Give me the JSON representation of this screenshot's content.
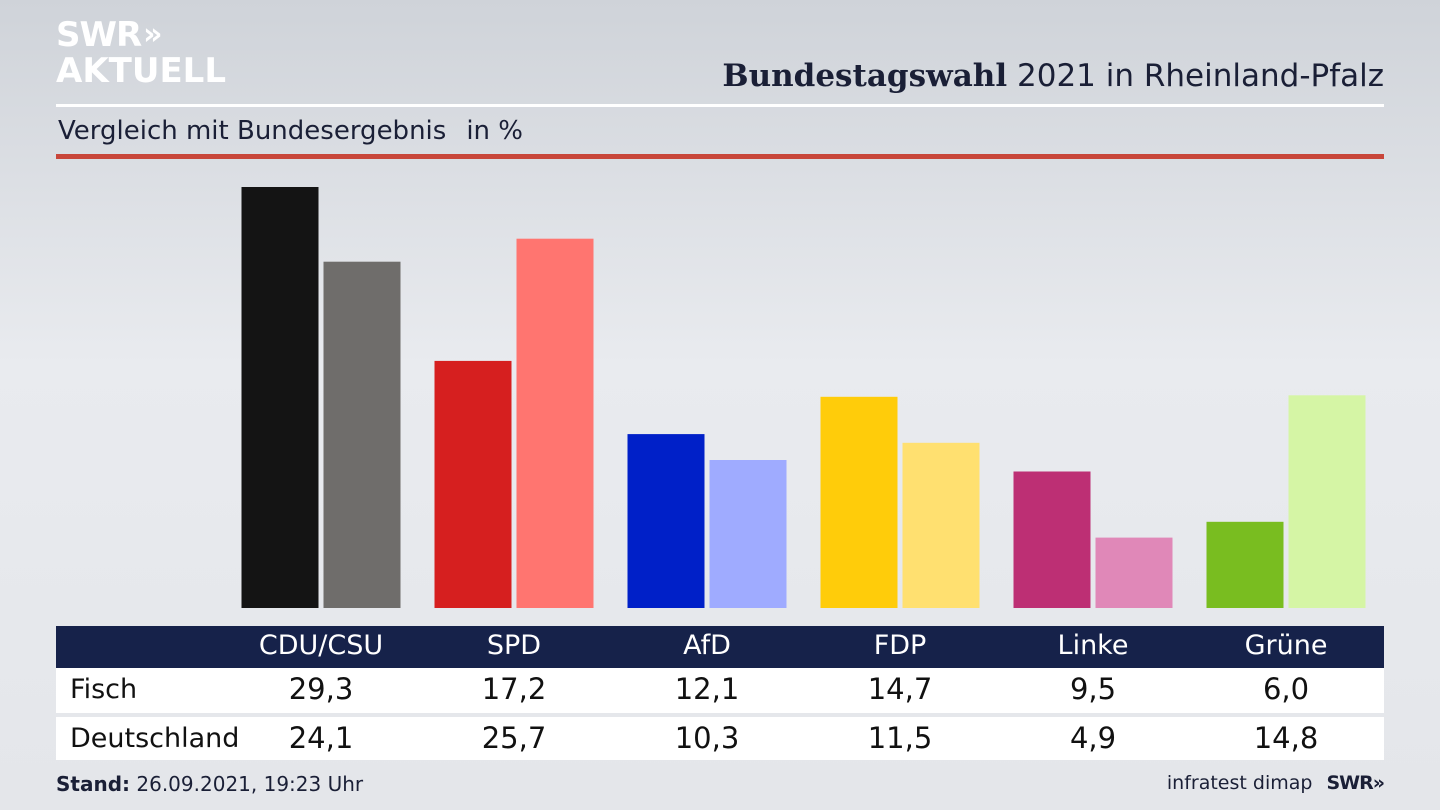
{
  "logo": {
    "line1": "SWR",
    "chevrons": "»",
    "line2": "AKTUELL"
  },
  "header": {
    "title_bold": "Bundestagswahl",
    "title_rest": "2021 in Rheinland-Pfalz"
  },
  "subtitle": {
    "text": "Vergleich mit Bundesergebnis",
    "unit": "in %"
  },
  "colors": {
    "primary": [
      "#141414",
      "#d61f1f",
      "#0020c8",
      "#ffcc0a",
      "#bd2f74",
      "#79bd20"
    ],
    "secondary": [
      "#6f6d6b",
      "#ff7570",
      "#9fabff",
      "#ffe070",
      "#e088b8",
      "#d5f5a5"
    ],
    "table_header": "#16224a",
    "accent_rule": "#c8463a"
  },
  "chart_data": {
    "type": "bar",
    "categories": [
      "CDU/CSU",
      "SPD",
      "AfD",
      "FDP",
      "Linke",
      "Grüne"
    ],
    "series": [
      {
        "name": "Fisch",
        "values": [
          29.3,
          17.2,
          12.1,
          14.7,
          9.5,
          6.0
        ]
      },
      {
        "name": "Deutschland",
        "values": [
          24.1,
          25.7,
          10.3,
          11.5,
          4.9,
          14.8
        ]
      }
    ],
    "ylim": [
      0,
      29.3
    ],
    "grid": false,
    "legend": "table-below"
  },
  "table": {
    "headers": [
      "CDU/CSU",
      "SPD",
      "AfD",
      "FDP",
      "Linke",
      "Grüne"
    ],
    "rows": [
      {
        "label": "Fisch",
        "values": [
          "29,3",
          "17,2",
          "12,1",
          "14,7",
          "9,5",
          "6,0"
        ]
      },
      {
        "label": "Deutschland",
        "values": [
          "24,1",
          "25,7",
          "10,3",
          "11,5",
          "4,9",
          "14,8"
        ]
      }
    ]
  },
  "footer": {
    "stand_label": "Stand:",
    "stand_value": "26.09.2021, 19:23 Uhr",
    "source": "infratest dimap",
    "brand": "SWR",
    "brand_chevrons": "»"
  }
}
